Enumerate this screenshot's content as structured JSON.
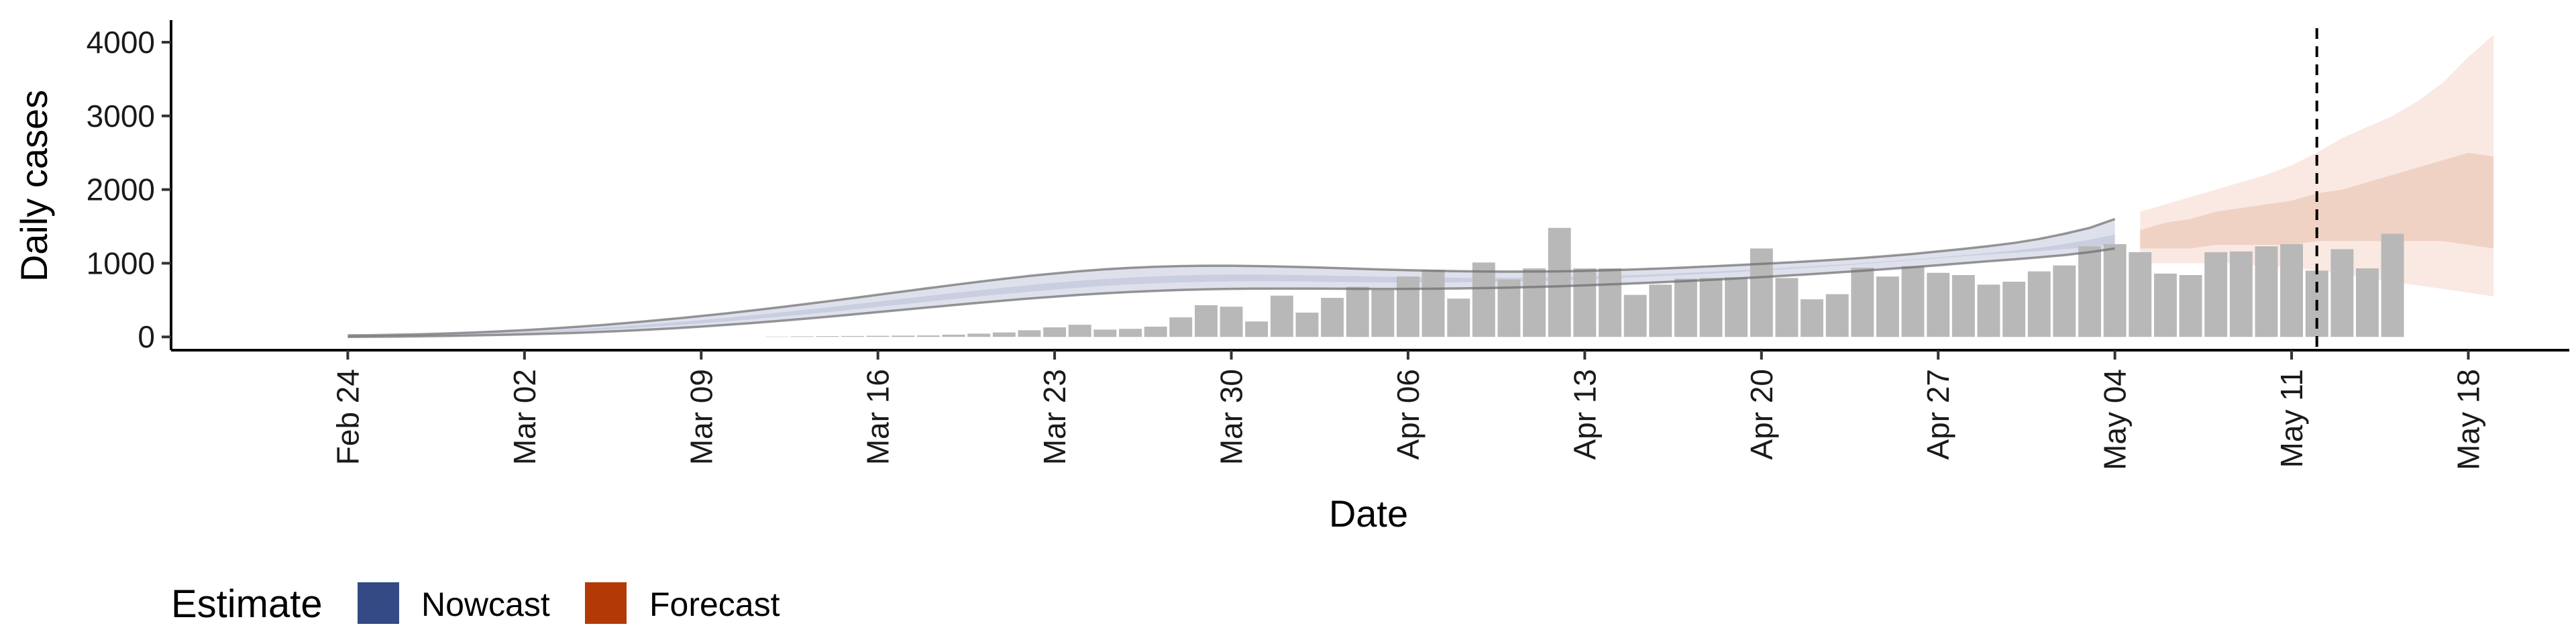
{
  "chart_data": {
    "type": "bar",
    "xlabel": "Date",
    "ylabel": "Daily cases",
    "ylim": [
      -180,
      4300
    ],
    "y_ticks": [
      0,
      1000,
      2000,
      3000,
      4000
    ],
    "y_tick_labels": [
      "0",
      "1000",
      "2000",
      "3000",
      "4000"
    ],
    "x_ticks": [
      "2020-02-24",
      "2020-03-02",
      "2020-03-09",
      "2020-03-16",
      "2020-03-23",
      "2020-03-30",
      "2020-04-06",
      "2020-04-13",
      "2020-04-20",
      "2020-04-27",
      "2020-05-04",
      "2020-05-11",
      "2020-05-18"
    ],
    "x_tick_labels": [
      "Feb 24",
      "Mar 02",
      "Mar 09",
      "Mar 16",
      "Mar 23",
      "Mar 30",
      "Apr 06",
      "Apr 13",
      "Apr 20",
      "Apr 27",
      "May 04",
      "May 11",
      "May 18"
    ],
    "xlim": [
      "2020-02-17",
      "2020-05-22"
    ],
    "grid": false,
    "reference_line": {
      "date": "2020-05-12",
      "style": "dashed"
    },
    "observed_cases": {
      "start_date": "2020-02-24",
      "values": [
        0,
        0,
        0,
        0,
        0,
        0,
        0,
        0,
        0,
        0,
        0,
        0,
        0,
        0,
        0,
        0,
        0,
        5,
        8,
        10,
        12,
        15,
        18,
        20,
        30,
        45,
        60,
        90,
        130,
        165,
        100,
        110,
        140,
        265,
        430,
        410,
        210,
        560,
        330,
        530,
        680,
        640,
        820,
        910,
        520,
        1010,
        780,
        930,
        1480,
        930,
        930,
        570,
        710,
        790,
        800,
        810,
        1200,
        800,
        510,
        580,
        940,
        820,
        960,
        870,
        840,
        710,
        750,
        890,
        970,
        1230,
        1260,
        1150,
        860,
        840,
        1150,
        1160,
        1230,
        1260,
        900,
        1190,
        930,
        1400
      ]
    },
    "nowcast": {
      "start_date": "2020-02-24",
      "outer_upper": [
        20,
        24,
        30,
        38,
        48,
        60,
        75,
        92,
        112,
        135,
        160,
        188,
        218,
        250,
        284,
        320,
        358,
        398,
        440,
        483,
        527,
        572,
        617,
        662,
        706,
        749,
        790,
        828,
        862,
        892,
        918,
        938,
        953,
        962,
        966,
        966,
        962,
        955,
        946,
        936,
        925,
        915,
        906,
        898,
        892,
        888,
        886,
        887,
        890,
        896,
        905,
        916,
        929,
        943,
        958,
        974,
        991,
        1009,
        1028,
        1049,
        1072,
        1098,
        1127,
        1160,
        1195,
        1232,
        1275,
        1330,
        1400,
        1480,
        1600
      ],
      "outer_lower": [
        0,
        2,
        5,
        9,
        14,
        20,
        27,
        35,
        44,
        55,
        68,
        83,
        100,
        119,
        140,
        163,
        188,
        215,
        243,
        273,
        304,
        336,
        368,
        400,
        432,
        463,
        493,
        521,
        547,
        571,
        592,
        610,
        625,
        637,
        646,
        652,
        655,
        656,
        655,
        654,
        652,
        651,
        652,
        654,
        658,
        663,
        670,
        678,
        688,
        700,
        713,
        727,
        742,
        758,
        775,
        793,
        812,
        832,
        853,
        875,
        898,
        922,
        947,
        973,
        1000,
        1027,
        1053,
        1080,
        1110,
        1150,
        1200
      ],
      "upper": [
        10,
        13,
        18,
        25,
        33,
        43,
        55,
        69,
        85,
        103,
        124,
        147,
        172,
        200,
        229,
        260,
        293,
        328,
        364,
        401,
        440,
        479,
        518,
        557,
        596,
        633,
        669,
        703,
        734,
        762,
        786,
        806,
        822,
        834,
        842,
        846,
        846,
        843,
        838,
        831,
        824,
        817,
        811,
        806,
        803,
        801,
        802,
        805,
        810,
        818,
        828,
        840,
        853,
        868,
        884,
        901,
        919,
        938,
        958,
        979,
        1001,
        1025,
        1051,
        1079,
        1109,
        1140,
        1172,
        1210,
        1260,
        1320,
        1390
      ],
      "lower": [
        4,
        6,
        10,
        15,
        22,
        30,
        40,
        51,
        64,
        79,
        96,
        115,
        136,
        159,
        184,
        211,
        240,
        271,
        303,
        337,
        372,
        407,
        443,
        479,
        514,
        549,
        582,
        614,
        643,
        670,
        693,
        713,
        729,
        741,
        749,
        754,
        756,
        755,
        752,
        748,
        744,
        741,
        739,
        739,
        741,
        745,
        751,
        759,
        769,
        781,
        795,
        810,
        826,
        843,
        861,
        880,
        900,
        921,
        943,
        966,
        990,
        1015,
        1041,
        1068,
        1095,
        1120,
        1143,
        1165,
        1190,
        1220,
        1260
      ]
    },
    "forecast": {
      "start_date": "2020-05-05",
      "outer_upper": [
        1700,
        1800,
        1900,
        2000,
        2100,
        2200,
        2330,
        2500,
        2700,
        2850,
        3000,
        3200,
        3450,
        3800,
        4100
      ],
      "upper": [
        1450,
        1550,
        1600,
        1700,
        1750,
        1800,
        1850,
        1950,
        2000,
        2100,
        2200,
        2300,
        2400,
        2500,
        2450
      ],
      "lower": [
        1200,
        1200,
        1200,
        1250,
        1250,
        1250,
        1250,
        1300,
        1300,
        1300,
        1300,
        1300,
        1300,
        1250,
        1200
      ],
      "outer_lower": [
        1000,
        1000,
        1000,
        1000,
        1000,
        950,
        950,
        900,
        850,
        800,
        750,
        700,
        650,
        600,
        550
      ]
    },
    "legend": {
      "title": "Estimate",
      "position": "bottom-left",
      "items": [
        {
          "label": "Nowcast",
          "color": "#334a85"
        },
        {
          "label": "Forecast",
          "color": "#b33a06"
        }
      ]
    },
    "colors": {
      "bars": "#b8b8b8",
      "nowcast_band": "#c3c9dd",
      "nowcast_line": "#6b6b6b",
      "forecast_outer": "#f9e9e2",
      "forecast_inner": "#f0d2c5",
      "axis": "#000000"
    }
  }
}
